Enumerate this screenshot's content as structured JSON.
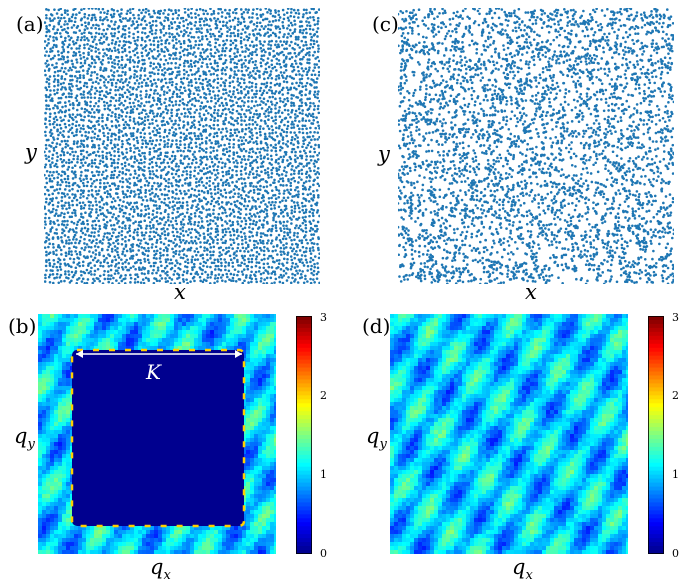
{
  "figure": {
    "panels": [
      {
        "id": "a",
        "tag": "(a)",
        "xlabel": "x",
        "ylabel": "y",
        "kind": "point-pattern",
        "point_color": "#1f77b4",
        "pattern": "uniform hyperuniform"
      },
      {
        "id": "b",
        "tag": "(b)",
        "xlabel": "q",
        "xlabel_sub": "x",
        "ylabel": "q",
        "ylabel_sub": "y",
        "kind": "structure-factor-map",
        "annotation": "K",
        "colorbar_ticks": [
          "3",
          "2",
          "1",
          "0"
        ]
      },
      {
        "id": "c",
        "tag": "(c)",
        "xlabel": "x",
        "ylabel": "y",
        "kind": "point-pattern",
        "point_color": "#1f77b4",
        "pattern": "random"
      },
      {
        "id": "d",
        "tag": "(d)",
        "xlabel": "q",
        "xlabel_sub": "x",
        "ylabel": "q",
        "ylabel_sub": "y",
        "kind": "structure-factor-map",
        "colorbar_ticks": [
          "3",
          "2",
          "1",
          "0"
        ]
      }
    ],
    "colormap": [
      "#00008f",
      "#0000ff",
      "#0080ff",
      "#00ffff",
      "#80ff80",
      "#ffff00",
      "#ff8000",
      "#ff0000",
      "#800000"
    ],
    "colorbar_range": [
      0,
      3
    ]
  }
}
